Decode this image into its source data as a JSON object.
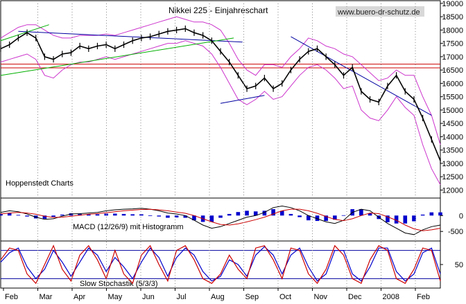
{
  "chart_data": {
    "type": "line",
    "title": "Nikkei 225 - Einjahreschart",
    "watermark": "www.buero-dr-schutz.de",
    "source_label": "Hoppenstedt Charts",
    "x_tick_labels": [
      "Feb",
      "Mar",
      "Apr",
      "May",
      "Jun",
      "Jul",
      "Aug",
      "Sep",
      "Oct",
      "Nov",
      "Dec",
      "2008",
      "Feb"
    ],
    "panels": [
      {
        "id": "price",
        "ylim": [
          11700,
          19100
        ],
        "y_ticks": [
          12000,
          12500,
          13000,
          13500,
          14000,
          14500,
          15000,
          15500,
          16000,
          16500,
          17000,
          17500,
          18000,
          18500,
          19000
        ],
        "series": [
          {
            "color": "#000000",
            "x": [
              0,
              0.02,
              0.04,
              0.06,
              0.08,
              0.1,
              0.12,
              0.14,
              0.16,
              0.18,
              0.2,
              0.22,
              0.24,
              0.26,
              0.28,
              0.3,
              0.32,
              0.34,
              0.36,
              0.38,
              0.4,
              0.42,
              0.44,
              0.46,
              0.48,
              0.5,
              0.52,
              0.54,
              0.56,
              0.58,
              0.6,
              0.62,
              0.64,
              0.66,
              0.68,
              0.7,
              0.72,
              0.74,
              0.76,
              0.78,
              0.8,
              0.82,
              0.84,
              0.86,
              0.88,
              0.9,
              0.92,
              0.94,
              0.96,
              0.98,
              1
            ],
            "values": [
              17300,
              17450,
              17700,
              17900,
              17700,
              17000,
              16900,
              17100,
              17150,
              17400,
              17300,
              17400,
              17450,
              17300,
              17450,
              17600,
              17700,
              17750,
              17850,
              17950,
              18000,
              18050,
              17900,
              17800,
              17600,
              17200,
              16800,
              16300,
              15800,
              15900,
              16200,
              15800,
              16000,
              16500,
              16900,
              17200,
              17300,
              17000,
              16700,
              16300,
              16600,
              15700,
              15400,
              15300,
              15900,
              16300,
              15700,
              15400,
              14700,
              13900,
              13100
            ]
          }
        ],
        "upper_band": [
          17700,
          17900,
          18100,
          18200,
          18200,
          18000,
          17800,
          17700,
          17700,
          17800,
          17800,
          17800,
          17850,
          17800,
          17900,
          18000,
          18100,
          18200,
          18300,
          18400,
          18500,
          18400,
          18300,
          18300,
          18200,
          18000,
          17500,
          16900,
          16500,
          16300,
          16700,
          16700,
          16600,
          17000,
          17300,
          17700,
          17600,
          17400,
          17300,
          17100,
          17000,
          16700,
          16400,
          16100,
          16200,
          16500,
          16300,
          16300,
          15500,
          14800,
          13700
        ],
        "lower_band": [
          16800,
          16900,
          17000,
          17100,
          16900,
          16300,
          16200,
          16500,
          16700,
          16800,
          16800,
          16900,
          17000,
          16900,
          17000,
          17100,
          17200,
          17300,
          17400,
          17500,
          17500,
          17600,
          17500,
          17400,
          17100,
          16600,
          16000,
          15400,
          15200,
          15400,
          15700,
          15400,
          15500,
          15900,
          16300,
          16600,
          16700,
          16500,
          16200,
          15800,
          15900,
          15000,
          14700,
          14600,
          15000,
          15500,
          15100,
          14800,
          13700,
          12800,
          12200
        ],
        "horizontal_lines": [
          16580,
          16720
        ],
        "trendlines": [
          {
            "color": "#0000a0",
            "points": [
              [
                0.04,
                17950
              ],
              [
                0.55,
                17550
              ]
            ]
          },
          {
            "color": "#0000a0",
            "points": [
              [
                0.5,
                15250
              ],
              [
                0.6,
                15550
              ]
            ]
          },
          {
            "color": "#0000a0",
            "points": [
              [
                0.66,
                17750
              ],
              [
                0.98,
                14800
              ]
            ]
          },
          {
            "color": "#00b000",
            "points": [
              [
                0,
                16300
              ],
              [
                0.53,
                17700
              ]
            ]
          },
          {
            "color": "#00b000",
            "points": [
              [
                0,
                17600
              ],
              [
                0.11,
                18200
              ]
            ]
          }
        ]
      },
      {
        "id": "macd",
        "label": "MACD (12/26/9) mit Histogramm",
        "ylim": [
          -800,
          550
        ],
        "y_ticks": [
          -500,
          0
        ],
        "x": [
          0,
          0.02,
          0.04,
          0.06,
          0.08,
          0.1,
          0.12,
          0.14,
          0.16,
          0.18,
          0.2,
          0.22,
          0.24,
          0.26,
          0.28,
          0.3,
          0.32,
          0.34,
          0.36,
          0.38,
          0.4,
          0.42,
          0.44,
          0.46,
          0.48,
          0.5,
          0.52,
          0.54,
          0.56,
          0.58,
          0.6,
          0.62,
          0.64,
          0.66,
          0.68,
          0.7,
          0.72,
          0.74,
          0.76,
          0.78,
          0.8,
          0.82,
          0.84,
          0.86,
          0.88,
          0.9,
          0.92,
          0.94,
          0.96,
          0.98,
          1
        ],
        "macd": [
          100,
          150,
          120,
          50,
          -50,
          -120,
          -100,
          -20,
          50,
          60,
          80,
          100,
          150,
          180,
          200,
          210,
          230,
          200,
          150,
          80,
          50,
          0,
          -150,
          -300,
          -400,
          -350,
          -250,
          -150,
          -50,
          0,
          100,
          250,
          300,
          250,
          150,
          0,
          -100,
          -200,
          -250,
          -150,
          100,
          200,
          150,
          -50,
          -250,
          -400,
          -550,
          -600,
          -450,
          -350,
          -300
        ],
        "signal": [
          50,
          80,
          100,
          80,
          40,
          -20,
          -60,
          -50,
          -20,
          10,
          40,
          60,
          90,
          120,
          150,
          170,
          190,
          195,
          180,
          150,
          110,
          70,
          0,
          -100,
          -200,
          -280,
          -300,
          -260,
          -200,
          -130,
          -50,
          50,
          150,
          200,
          200,
          150,
          70,
          -30,
          -120,
          -160,
          -100,
          0,
          80,
          60,
          -40,
          -150,
          -300,
          -420,
          -480,
          -450,
          -400
        ],
        "colors": {
          "macd": "#000000",
          "signal": "#cc0000",
          "histogram": "#0000cc"
        }
      },
      {
        "id": "stochastic",
        "label": "Slow Stochastik (5/3/3)",
        "ylim": [
          0,
          100
        ],
        "y_ticks": [
          50
        ],
        "levels": [
          20,
          80
        ],
        "x": [
          0,
          0.02,
          0.04,
          0.06,
          0.08,
          0.1,
          0.12,
          0.14,
          0.16,
          0.18,
          0.2,
          0.22,
          0.24,
          0.26,
          0.28,
          0.3,
          0.32,
          0.34,
          0.36,
          0.38,
          0.4,
          0.42,
          0.44,
          0.46,
          0.48,
          0.5,
          0.52,
          0.54,
          0.56,
          0.58,
          0.6,
          0.62,
          0.64,
          0.66,
          0.68,
          0.7,
          0.72,
          0.74,
          0.76,
          0.78,
          0.8,
          0.82,
          0.84,
          0.86,
          0.88,
          0.9,
          0.92,
          0.94,
          0.96,
          0.98,
          1
        ],
        "k": [
          60,
          85,
          80,
          30,
          10,
          50,
          90,
          40,
          15,
          70,
          90,
          60,
          20,
          80,
          30,
          10,
          70,
          90,
          50,
          15,
          80,
          90,
          60,
          20,
          10,
          30,
          70,
          40,
          20,
          85,
          90,
          60,
          20,
          85,
          80,
          30,
          10,
          40,
          90,
          70,
          20,
          10,
          60,
          90,
          80,
          20,
          10,
          40,
          85,
          80,
          15
        ],
        "d": [
          55,
          75,
          85,
          45,
          20,
          40,
          80,
          55,
          25,
          55,
          85,
          70,
          35,
          65,
          45,
          20,
          55,
          85,
          65,
          25,
          65,
          85,
          70,
          35,
          15,
          25,
          60,
          50,
          25,
          70,
          88,
          70,
          30,
          70,
          85,
          45,
          15,
          30,
          80,
          80,
          30,
          15,
          45,
          85,
          85,
          35,
          15,
          30,
          75,
          85,
          30
        ],
        "colors": {
          "k": "#cc0000",
          "d": "#0000cc",
          "levels": "#0000a0"
        }
      }
    ]
  }
}
